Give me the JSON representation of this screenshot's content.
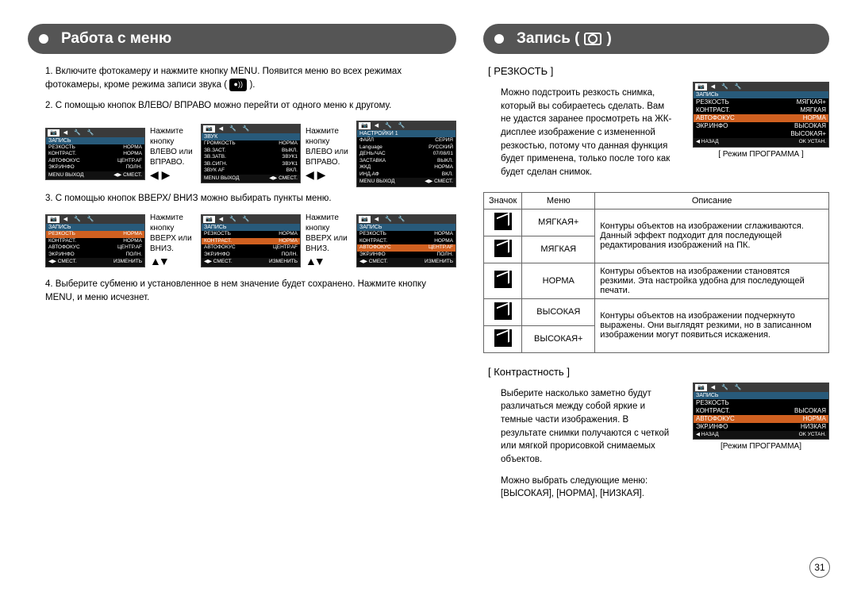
{
  "page_number": "31",
  "left": {
    "title": "Работа с меню",
    "step1": "1. Включите фотокамеру и нажмите кнопку MENU. Появится меню во всех режимах фотокамеры, кроме режима записи звука (",
    "step1_end": " ).",
    "step2": "2. С помощью кнопок ВЛЕВО/ ВПРАВО можно перейти от одного меню к другому.",
    "hint_lr": "Нажмите кнопку ВЛЕВО или ВПРАВО.",
    "step3": "3. С помощью кнопок ВВЕРХ/ ВНИЗ можно выбирать пункты меню.",
    "hint_ud": "Нажмите кнопку ВВЕРХ или ВНИЗ.",
    "step4": "4. Выберите субменю и установленное в нем значение будет сохранено. Нажмите кнопку MENU, и меню исчезнет.",
    "lcd1": {
      "title": "ЗАПИСЬ",
      "rows": [
        [
          "РЕЗКОСТЬ",
          "НОРМА"
        ],
        [
          "КОНТРАСТ.",
          "НОРМА"
        ],
        [
          "АВТОФОКУС",
          "ЦЕНТР.AF"
        ],
        [
          "ЭКР.ИНФО",
          "ПОЛН."
        ]
      ],
      "foot_l": "MENU ВЫХОД",
      "foot_r": "◀▶ СМЕСТ."
    },
    "lcd2": {
      "title": "ЗВУК",
      "rows": [
        [
          "ГРОМКОСТЬ",
          "НОРМА"
        ],
        [
          "ЗВ.ЗАСТ.",
          "ВЫКЛ."
        ],
        [
          "ЗВ.ЗАТВ.",
          "ЗВУК1"
        ],
        [
          "ЗВ.СИГН.",
          "ЗВУК1"
        ],
        [
          "ЗВУК AF",
          "ВКЛ."
        ]
      ],
      "foot_l": "MENU ВЫХОД",
      "foot_r": "◀▶ СМЕСТ."
    },
    "lcd3": {
      "title": "НАСТРОЙКИ 1",
      "rows": [
        [
          "ФАЙЛ",
          "СЕРИЯ"
        ],
        [
          "Language",
          "РУССКИЙ"
        ],
        [
          "ДЕНЬ/ЧАС",
          "07/08/01"
        ],
        [
          "ЗАСТАВКА",
          "ВЫКЛ."
        ],
        [
          "ЖКД",
          "НОРМА"
        ],
        [
          "ИНД.АФ",
          "ВКЛ."
        ]
      ],
      "foot_l": "MENU ВЫХОД",
      "foot_r": "◀▶ СМЕСТ."
    },
    "lcd4": {
      "title": "ЗАПИСЬ",
      "hl": 0,
      "rows": [
        [
          "РЕЗКОСТЬ",
          "НОРМА"
        ],
        [
          "КОНТРАСТ.",
          "НОРМА"
        ],
        [
          "АВТОФОКУС",
          "ЦЕНТР.AF"
        ],
        [
          "ЭКР.ИНФО",
          "ПОЛН."
        ]
      ],
      "foot_l": "◀▶ СМЕСТ.",
      "foot_r": "ИЗМЕНИТЬ"
    },
    "lcd5": {
      "title": "ЗАПИСЬ",
      "hl": 1,
      "rows": [
        [
          "РЕЗКОСТЬ",
          "НОРМА"
        ],
        [
          "КОНТРАСТ.",
          "НОРМА"
        ],
        [
          "АВТОФОКУС",
          "ЦЕНТР.AF"
        ],
        [
          "ЭКР.ИНФО",
          "ПОЛН."
        ]
      ],
      "foot_l": "◀▶ СМЕСТ.",
      "foot_r": "ИЗМЕНИТЬ"
    },
    "lcd6": {
      "title": "ЗАПИСЬ",
      "hl": 2,
      "rows": [
        [
          "РЕЗКОСТЬ",
          "НОРМА"
        ],
        [
          "КОНТРАСТ.",
          "НОРМА"
        ],
        [
          "АВТОФОКУС",
          "ЦЕНТР.AF"
        ],
        [
          "ЭКР.ИНФО",
          "ПОЛН."
        ]
      ],
      "foot_l": "◀▶ СМЕСТ.",
      "foot_r": "ИЗМЕНИТЬ"
    }
  },
  "right": {
    "title": "Запись (",
    "title_end": " )",
    "sharp_heading": "[ РЕЗКОСТЬ ]",
    "sharp_text": "Можно подстроить резкость снимка, который вы собираетесь сделать. Вам не удастся заранее просмотреть на ЖК-дисплее изображение с измененной резкостью, потому что данная функция будет применена, только после того как будет сделан снимок.",
    "sharp_lcd": {
      "title": "ЗАПИСЬ",
      "rows": [
        [
          "РЕЗКОСТЬ",
          "МЯГКАЯ+"
        ],
        [
          "КОНТРАСТ.",
          "МЯГКАЯ"
        ],
        [
          "АВТОФОКУС",
          "НОРМА"
        ],
        [
          "ЭКР.ИНФО",
          "ВЫСОКАЯ"
        ],
        [
          "",
          "ВЫСОКАЯ+"
        ]
      ],
      "hl": 2,
      "foot_l": "◀ НАЗАД",
      "foot_r": "OK УСТАН."
    },
    "sharp_caption": "[ Режим ПРОГРАММА ]",
    "table": {
      "h1": "Значок",
      "h2": "Меню",
      "h3": "Описание",
      "rows": [
        {
          "m": "МЯГКАЯ+",
          "d": "Контуры объектов на изображении сглаживаются. Данный эффект подходит для последующей редактирования изображений на ПК."
        },
        {
          "m": "МЯГКАЯ",
          "d": ""
        },
        {
          "m": "НОРМА",
          "d": "Контуры объектов на изображении становятся резкими. Эта настройка удобна для последующей печати."
        },
        {
          "m": "ВЫСОКАЯ",
          "d": "Контуры объектов на изображении подчеркнуто выражены. Они выглядят резкими, но в записанном изображении могут появиться искажения."
        },
        {
          "m": "ВЫСОКАЯ+",
          "d": ""
        }
      ]
    },
    "contrast_heading": "[ Контрастность ]",
    "contrast_text": "Выберите насколько заметно будут различаться между собой яркие и темные части изображения. В результате снимки получаются с четкой или мягкой прорисовкой снимаемых объектов.",
    "contrast_menus_label": "Можно выбрать следующие меню:",
    "contrast_menus": "[ВЫСОКАЯ], [НОРМА], [НИЗКАЯ].",
    "contrast_lcd": {
      "title": "ЗАПИСЬ",
      "rows": [
        [
          "РЕЗКОСТЬ",
          ""
        ],
        [
          "КОНТРАСТ.",
          "ВЫСОКАЯ"
        ],
        [
          "АВТОФОКУС",
          "НОРМА"
        ],
        [
          "ЭКР.ИНФО",
          "НИЗКАЯ"
        ]
      ],
      "hl": 2,
      "foot_l": "◀ НАЗАД",
      "foot_r": "OK УСТАН."
    },
    "contrast_caption": "[Режим ПРОГРАММА]"
  }
}
